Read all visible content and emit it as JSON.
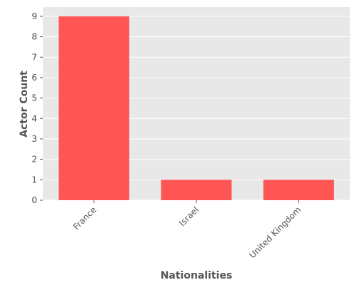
{
  "chart_data": {
    "type": "bar",
    "categories": [
      "France",
      "Israel",
      "United Kingdom"
    ],
    "values": [
      9,
      1,
      1
    ],
    "title": "",
    "xlabel": "Nationalities",
    "ylabel": "Actor Count",
    "ylim": [
      0,
      9.45
    ],
    "yticks": [
      0,
      1,
      2,
      3,
      4,
      5,
      6,
      7,
      8,
      9
    ],
    "grid": true,
    "colors": {
      "bar": "#ff5555",
      "panel": "#e8e8e8",
      "grid": "#ffffff",
      "text": "#555555"
    }
  }
}
